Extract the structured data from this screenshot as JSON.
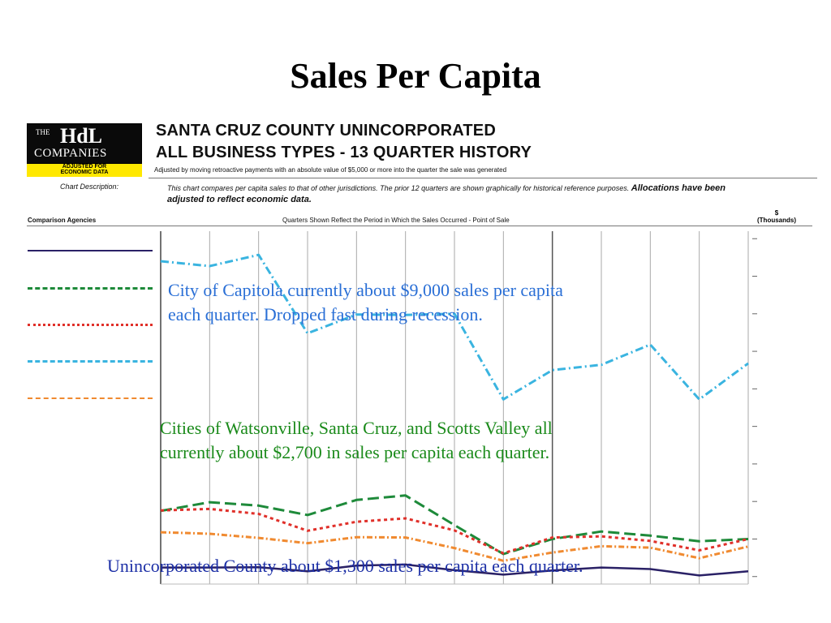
{
  "slide": {
    "title": "Sales Per Capita"
  },
  "logo": {
    "the": "THE",
    "hdl": "HdL",
    "companies": "COMPANIES",
    "badge_line1": "ADJUSTED FOR",
    "badge_line2": "ECONOMIC DATA"
  },
  "report": {
    "title_line1": "SANTA CRUZ COUNTY UNINCORPORATED",
    "title_line2": "ALL BUSINESS TYPES - 13 QUARTER HISTORY",
    "note": "Adjusted by moving retroactive payments with an absolute value of $5,000 or more into the quarter the sale was generated",
    "description_label": "Chart Description:",
    "description_text": "This chart compares per capita sales to that of other jurisdictions. The prior 12 quarters are shown graphically for historical reference purposes.",
    "description_bold": "Allocations have been adjusted to reflect economic data.",
    "comparison_header": "Comparison Agencies",
    "quarters_header": "Quarters Shown Reflect the Period in Which the Sales Occurred - Point of Sale",
    "unit_symbol": "$",
    "unit_label": "(Thousands)"
  },
  "annotations": {
    "capitola": [
      "City of Capitola currently about $9,000 sales per capita",
      "each quarter.  Dropped fast during recession."
    ],
    "cities": [
      "Cities of Watsonville, Santa Cruz, and Scotts Valley all",
      "currently about $2,700 in sales per capita each quarter."
    ],
    "county": "Unincorporated County about $1,300 sales per capita each quarter."
  },
  "colors": {
    "county": "#2a2166",
    "scotts_valley": "#1e8a3a",
    "santa_cruz": "#e0302a",
    "capitola": "#3ab4e0",
    "watsonville": "#f08a30",
    "annotation_blue": "#2a6fd6",
    "annotation_green": "#1a8a1a",
    "annotation_navy": "#1c2fa6"
  },
  "chart_data": {
    "type": "line",
    "title": "ALL BUSINESS TYPES - 13 QUARTER HISTORY",
    "ylabel": "$ (Thousands)",
    "ylim": [
      0.8,
      10.2
    ],
    "grid": "vertical lines at each quarter",
    "legend": "left",
    "x": [
      1,
      2,
      3,
      4,
      5,
      6,
      7,
      8,
      9,
      10,
      11,
      12,
      13
    ],
    "series": [
      {
        "name": "Capitola",
        "values": [
          9.4,
          9.27,
          9.57,
          7.48,
          7.98,
          7.97,
          8.0,
          5.72,
          6.5,
          6.64,
          7.18,
          5.72,
          6.68
        ]
      },
      {
        "name": "Scotts Valley",
        "values": [
          2.75,
          2.98,
          2.89,
          2.64,
          3.04,
          3.16,
          2.37,
          1.6,
          2.0,
          2.2,
          2.09,
          1.94,
          2.0
        ]
      },
      {
        "name": "Santa Cruz",
        "values": [
          2.76,
          2.8,
          2.67,
          2.22,
          2.46,
          2.55,
          2.23,
          1.62,
          2.04,
          2.07,
          1.95,
          1.7,
          2.0
        ]
      },
      {
        "name": "Watsonville",
        "values": [
          2.18,
          2.14,
          2.03,
          1.89,
          2.05,
          2.04,
          1.76,
          1.42,
          1.64,
          1.81,
          1.77,
          1.49,
          1.8
        ]
      },
      {
        "name": "Santa Cruz County Unincorporated",
        "values": [
          1.24,
          1.24,
          1.25,
          1.14,
          1.29,
          1.32,
          1.17,
          1.05,
          1.16,
          1.24,
          1.2,
          1.03,
          1.14
        ]
      }
    ]
  }
}
